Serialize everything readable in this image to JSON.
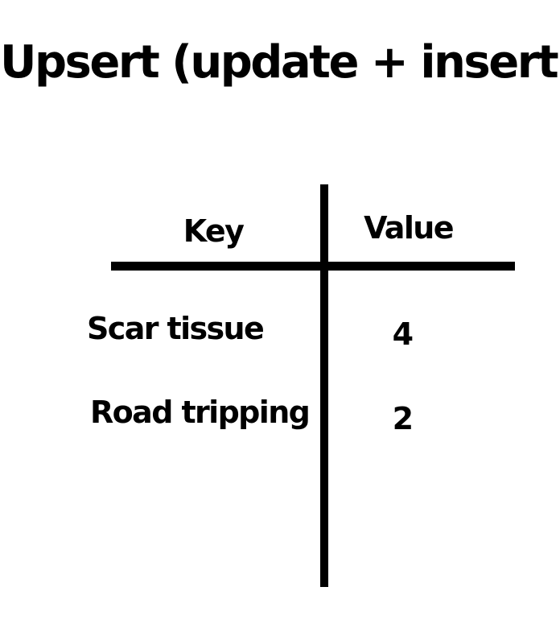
{
  "title": "Upsert (update + insert)",
  "table": {
    "headers": {
      "key": "Key",
      "value": "Value"
    },
    "rows": [
      {
        "key": "Scar tissue",
        "value": "4"
      },
      {
        "key": "Road tripping",
        "value": "2"
      }
    ]
  },
  "colors": {
    "background": "#ffffff",
    "ink": "#000000"
  }
}
